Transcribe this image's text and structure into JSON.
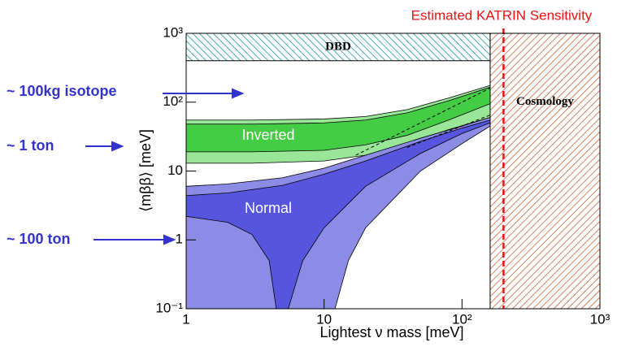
{
  "chart_data": {
    "type": "log-region",
    "x_label": "Lightest ν mass [meV]",
    "y_label": "⟨mββ⟩ [meV]",
    "xlim": [
      1,
      1000
    ],
    "ylim": [
      0.1,
      1000
    ],
    "xticks": [
      1,
      10,
      {
        "value": 100,
        "label": "10²"
      },
      {
        "value": 1000,
        "label": "10³"
      }
    ],
    "yticks": [
      {
        "value": 0.1,
        "label": "10⁻¹"
      },
      1,
      10,
      {
        "value": 100,
        "label": "10²"
      },
      {
        "value": 1000,
        "label": "10³"
      }
    ],
    "log_x": true,
    "log_y": true,
    "regions": [
      {
        "color": "#99e699",
        "x": [
          1,
          3,
          10,
          20,
          40,
          80,
          160,
          160,
          80,
          40,
          20,
          10,
          3,
          1
        ],
        "y": [
          55,
          55,
          57,
          62,
          78,
          115,
          175,
          60,
          40,
          25,
          17,
          14,
          13,
          13
        ]
      },
      {
        "color": "#44cc44",
        "x": [
          1,
          3,
          10,
          20,
          40,
          80,
          160,
          160,
          80,
          40,
          20,
          10,
          3,
          1
        ],
        "y": [
          48,
          48,
          50,
          55,
          70,
          105,
          165,
          95,
          55,
          33,
          24,
          20,
          19,
          19
        ]
      },
      {
        "color": "#8c8ce6",
        "x": [
          1,
          2,
          5,
          10,
          20,
          50,
          100,
          160,
          160,
          100,
          50,
          20,
          15,
          12,
          1
        ],
        "y": [
          6,
          6.5,
          8,
          11,
          17,
          30,
          45,
          60,
          45,
          25,
          10,
          1.5,
          0.5,
          0.1,
          0.1
        ]
      },
      {
        "color": "#5555dd",
        "x": [
          1,
          2,
          5,
          10,
          20,
          50,
          100,
          160,
          160,
          100,
          50,
          20,
          10,
          7,
          5.5,
          4.5,
          4,
          3,
          2,
          1
        ],
        "y": [
          4.4,
          4.8,
          6.2,
          9,
          14,
          27,
          42,
          55,
          50,
          35,
          18,
          6,
          1.5,
          0.5,
          0.1,
          0.1,
          0.5,
          1.2,
          1.8,
          2.2
        ]
      }
    ],
    "lines": [
      {
        "x": [
          17,
          160
        ],
        "y": [
          17,
          160
        ]
      },
      {
        "x": [
          40,
          160
        ],
        "y": [
          22,
          65
        ]
      }
    ],
    "annotations": [
      "Inverted",
      "Normal",
      "~ 100kg isotope",
      "~ 1 ton",
      "~ 100 ton"
    ],
    "boxes": [
      {
        "label": "DBD",
        "xlim": [
          1,
          160
        ],
        "ylim": [
          400,
          1000
        ],
        "color": "#1a9a9a"
      },
      {
        "label": "Cosmology",
        "xlim": [
          160,
          1000
        ],
        "ylim": [
          0.1,
          1000
        ],
        "color": "#c8643c"
      }
    ],
    "katrin": {
      "label": "Estimated KATRIN Sensitivity",
      "x": 200,
      "color": "#ee1111"
    }
  }
}
